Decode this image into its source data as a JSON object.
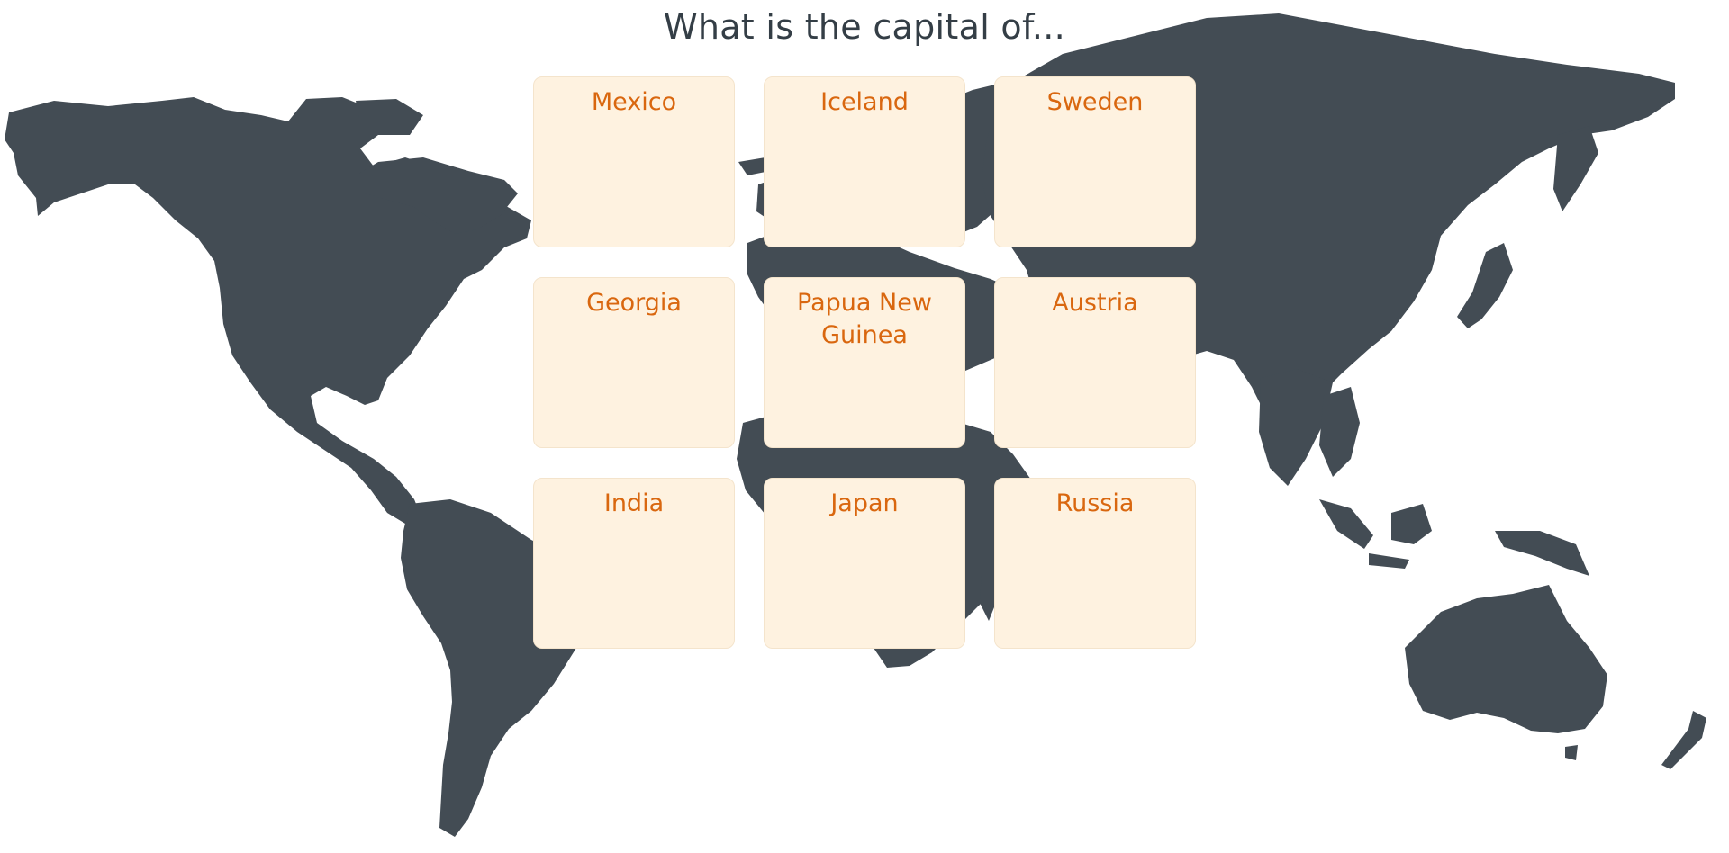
{
  "quiz": {
    "question": "What is the capital of...",
    "cards": [
      {
        "label": "Mexico"
      },
      {
        "label": "Iceland"
      },
      {
        "label": "Sweden"
      },
      {
        "label": "Georgia"
      },
      {
        "label": "Papua New Guinea"
      },
      {
        "label": "Austria"
      },
      {
        "label": "India"
      },
      {
        "label": "Japan"
      },
      {
        "label": "Russia"
      }
    ]
  },
  "colors": {
    "map": "#434c54",
    "card_background": "#fef2e0",
    "card_text": "#d9670f",
    "title_text": "#343e46"
  }
}
